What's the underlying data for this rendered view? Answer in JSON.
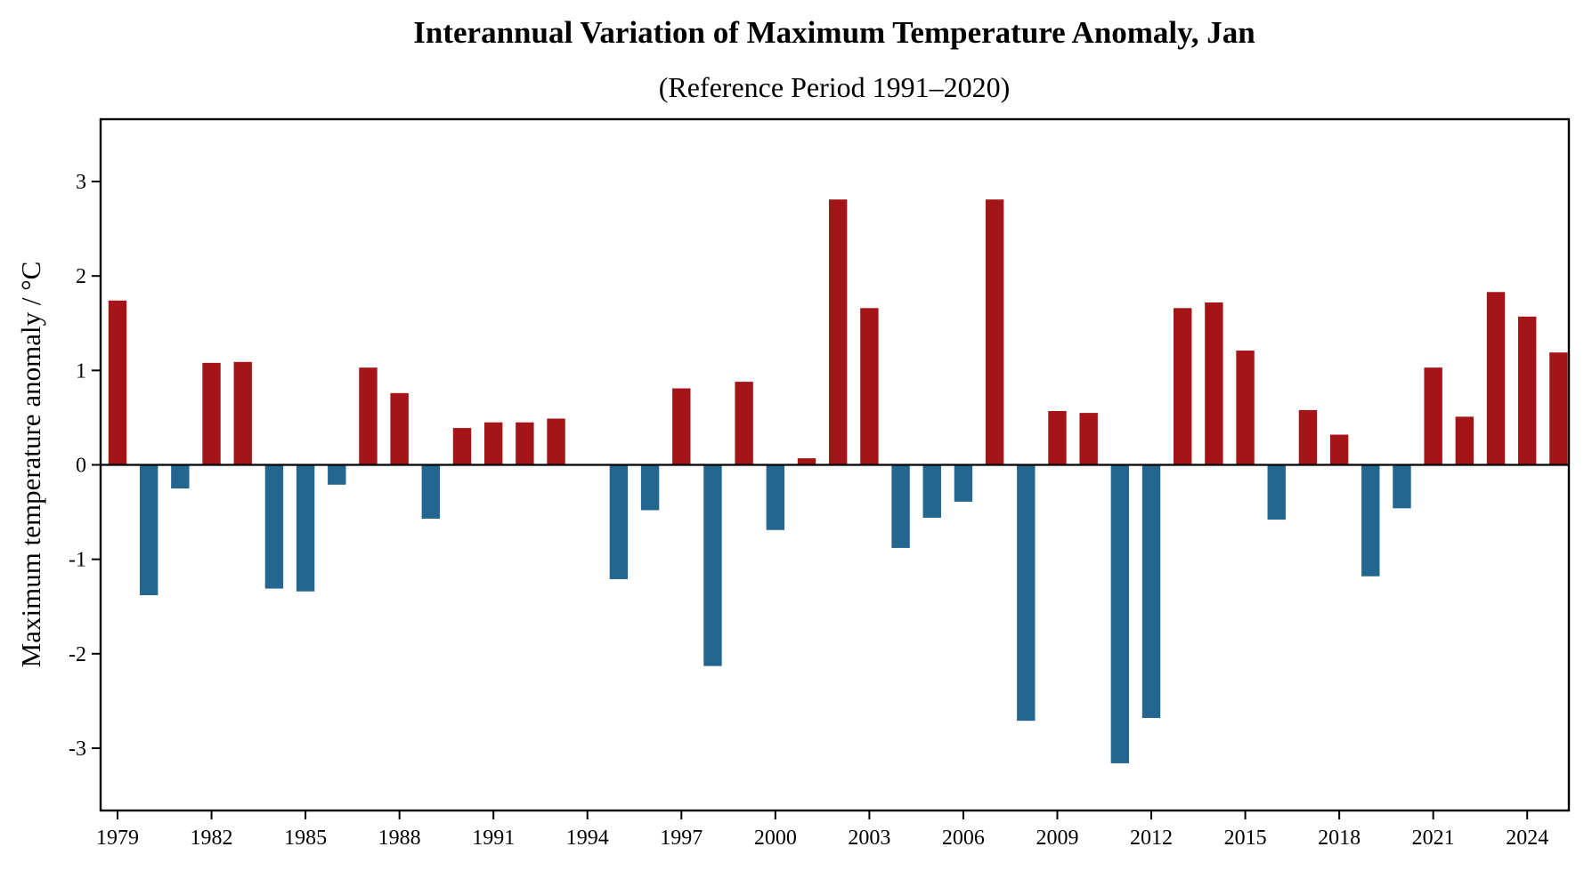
{
  "chart_data": {
    "type": "bar",
    "title": "Interannual Variation of Maximum Temperature Anomaly, Jan",
    "subtitle": "(Reference Period 1991–2020)",
    "xlabel": "",
    "ylabel": "Maximum temperature anomaly / °C",
    "x": [
      1979,
      1980,
      1981,
      1982,
      1983,
      1984,
      1985,
      1986,
      1987,
      1988,
      1989,
      1990,
      1991,
      1992,
      1993,
      1994,
      1995,
      1996,
      1997,
      1998,
      1999,
      2000,
      2001,
      2002,
      2003,
      2004,
      2005,
      2006,
      2007,
      2008,
      2009,
      2010,
      2011,
      2012,
      2013,
      2014,
      2015,
      2016,
      2017,
      2018,
      2019,
      2020,
      2021,
      2022,
      2023,
      2024,
      2025
    ],
    "values": [
      1.74,
      -1.38,
      -0.25,
      1.08,
      1.09,
      -1.31,
      -1.34,
      -0.21,
      1.03,
      0.76,
      -0.57,
      0.39,
      0.45,
      0.45,
      0.49,
      0.0,
      -1.21,
      -0.48,
      0.81,
      -2.13,
      0.88,
      -0.69,
      0.07,
      2.81,
      1.66,
      -0.88,
      -0.56,
      -0.39,
      2.81,
      -2.71,
      0.57,
      0.55,
      -3.16,
      -2.68,
      1.66,
      1.72,
      1.21,
      -0.58,
      0.58,
      0.32,
      -1.18,
      -0.46,
      1.03,
      0.51,
      1.83,
      1.57,
      1.19
    ],
    "xticks": [
      1979,
      1982,
      1985,
      1988,
      1991,
      1994,
      1997,
      2000,
      2003,
      2006,
      2009,
      2012,
      2015,
      2018,
      2021,
      2024
    ],
    "yticks": [
      -3,
      -2,
      -1,
      0,
      1,
      2,
      3
    ],
    "xlim": [
      1978.46,
      2025.33
    ],
    "ylim": [
      -3.66,
      3.66
    ],
    "grid": false,
    "legend": "none",
    "colors": {
      "positive": "#A51517",
      "negative": "#236790",
      "zero_line": "#000000"
    }
  }
}
